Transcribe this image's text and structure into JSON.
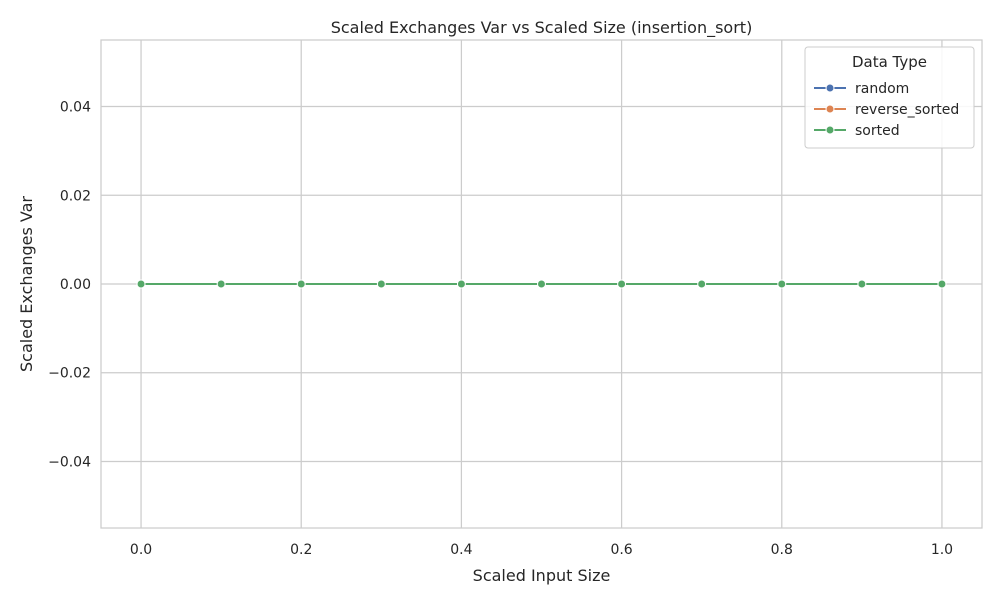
{
  "chart_data": {
    "type": "line",
    "title": "Scaled Exchanges Var vs Scaled Size (insertion_sort)",
    "xlabel": "Scaled Input Size",
    "ylabel": "Scaled Exchanges Var",
    "xlim": [
      -0.05,
      1.05
    ],
    "ylim": [
      -0.055,
      0.055
    ],
    "xticks": [
      0.0,
      0.2,
      0.4,
      0.6,
      0.8,
      1.0
    ],
    "xtick_labels": [
      "0.0",
      "0.2",
      "0.4",
      "0.6",
      "0.8",
      "1.0"
    ],
    "yticks": [
      -0.04,
      -0.02,
      0.0,
      0.02,
      0.04
    ],
    "ytick_labels": [
      "−0.04",
      "−0.02",
      "0.00",
      "0.02",
      "0.04"
    ],
    "grid": true,
    "legend_position": "top-right",
    "legend_title": "Data Type",
    "x": [
      0.0,
      0.1,
      0.2,
      0.3,
      0.4,
      0.5,
      0.6,
      0.7,
      0.8,
      0.9,
      1.0
    ],
    "series": [
      {
        "name": "random",
        "color": "#4c72b0",
        "values": [
          0,
          0,
          0,
          0,
          0,
          0,
          0,
          0,
          0,
          0,
          0
        ]
      },
      {
        "name": "reverse_sorted",
        "color": "#dd8452",
        "values": [
          0,
          0,
          0,
          0,
          0,
          0,
          0,
          0,
          0,
          0,
          0
        ]
      },
      {
        "name": "sorted",
        "color": "#55a868",
        "values": [
          0,
          0,
          0,
          0,
          0,
          0,
          0,
          0,
          0,
          0,
          0
        ]
      }
    ]
  }
}
